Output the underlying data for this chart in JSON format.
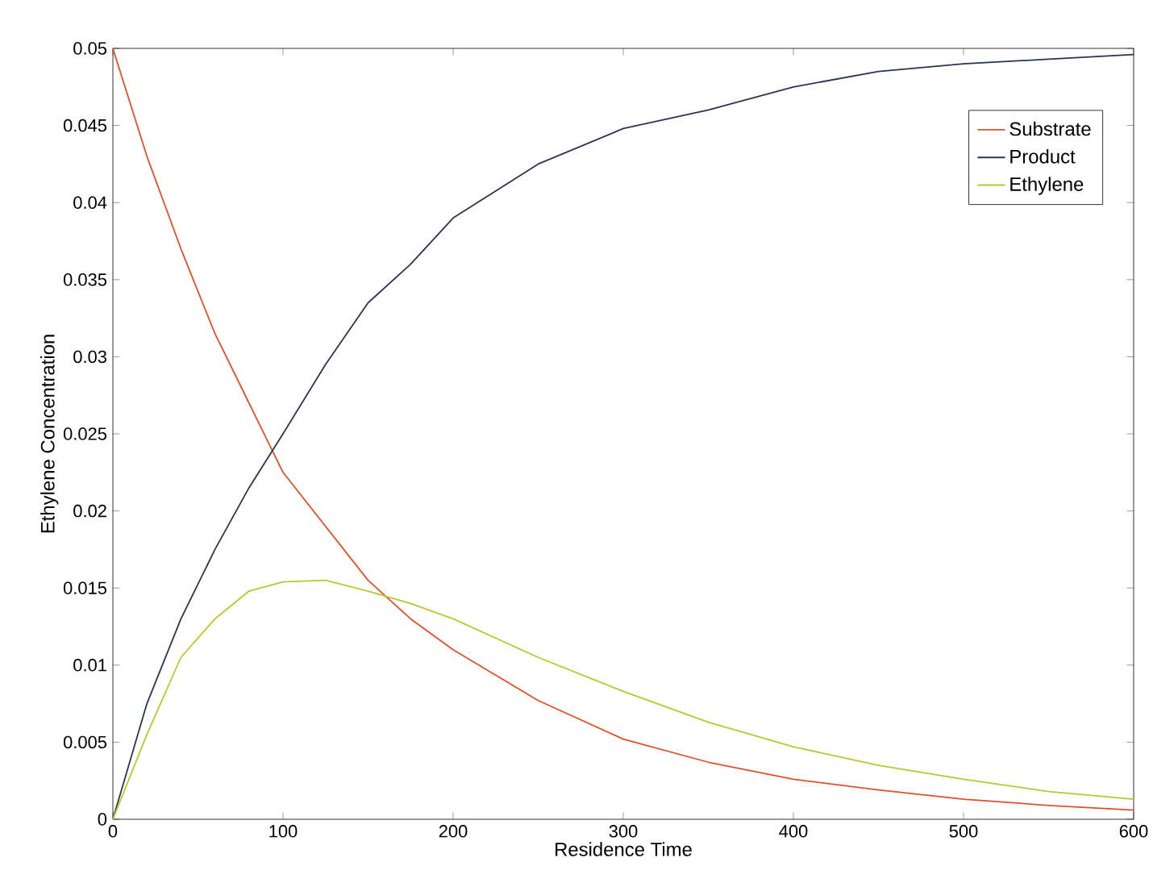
{
  "chart_data": {
    "type": "line",
    "xlabel": "Residence Time",
    "ylabel": "Ethylene Concentration",
    "x": [
      0,
      20,
      40,
      60,
      80,
      100,
      125,
      150,
      175,
      200,
      250,
      300,
      350,
      400,
      450,
      500,
      550,
      600
    ],
    "series": [
      {
        "name": "Substrate",
        "color": "#e0502a",
        "values": [
          0.05,
          0.043,
          0.037,
          0.0315,
          0.027,
          0.0225,
          0.019,
          0.0155,
          0.013,
          0.011,
          0.0077,
          0.0052,
          0.0037,
          0.0026,
          0.0019,
          0.0013,
          0.0009,
          0.0006
        ]
      },
      {
        "name": "Product",
        "color": "#2a3550",
        "values": [
          0,
          0.0075,
          0.013,
          0.0175,
          0.0215,
          0.025,
          0.0295,
          0.0335,
          0.036,
          0.039,
          0.0425,
          0.0448,
          0.046,
          0.0475,
          0.0485,
          0.049,
          0.0493,
          0.0496
        ]
      },
      {
        "name": "Ethylene",
        "color": "#b8c830",
        "values": [
          0,
          0.0055,
          0.0105,
          0.013,
          0.0148,
          0.0154,
          0.0155,
          0.0148,
          0.014,
          0.013,
          0.0105,
          0.0083,
          0.0063,
          0.0047,
          0.0035,
          0.0026,
          0.0018,
          0.0013
        ]
      }
    ],
    "xlim": [
      0,
      600
    ],
    "xticks": [
      0,
      100,
      200,
      300,
      400,
      500,
      600
    ],
    "ylim": [
      0,
      0.05
    ],
    "yticks": [
      0,
      0.005,
      0.01,
      0.015,
      0.02,
      0.025,
      0.03,
      0.035,
      0.04,
      0.045,
      0.05
    ],
    "legend": "top right",
    "grid": false,
    "marker": "none",
    "line_style": "solid"
  }
}
